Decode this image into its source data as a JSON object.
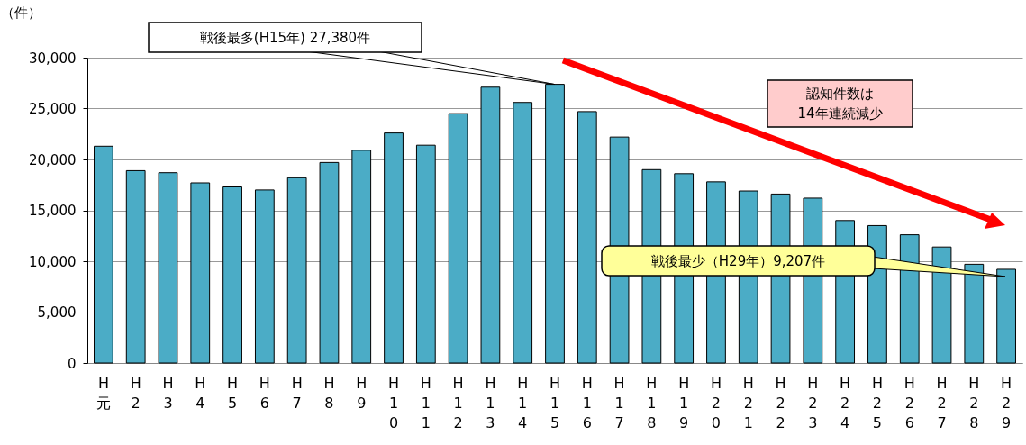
{
  "chart_data": {
    "type": "bar",
    "ylabel": "（件）",
    "categories": [
      "H元",
      "H2",
      "H3",
      "H4",
      "H5",
      "H6",
      "H7",
      "H8",
      "H9",
      "H10",
      "H11",
      "H12",
      "H13",
      "H14",
      "H15",
      "H16",
      "H17",
      "H18",
      "H19",
      "H20",
      "H21",
      "H22",
      "H23",
      "H24",
      "H25",
      "H26",
      "H27",
      "H28",
      "H29"
    ],
    "values": [
      21300,
      18900,
      18700,
      17700,
      17300,
      17000,
      18200,
      19700,
      20900,
      22600,
      21400,
      24500,
      27100,
      25600,
      27380,
      24700,
      22200,
      19000,
      18600,
      17800,
      16900,
      16600,
      16200,
      14000,
      13500,
      12600,
      11400,
      9700,
      9207
    ],
    "color": "#4bacc6",
    "ylim": [
      0,
      30000
    ],
    "yticks": [
      0,
      {
        "value": 5000,
        "label": "5,000"
      },
      {
        "value": 10000,
        "label": "10,000"
      },
      {
        "value": 15000,
        "label": "15,000"
      },
      {
        "value": 20000,
        "label": "20,000"
      },
      {
        "value": 25000,
        "label": "25,000"
      },
      {
        "value": 30000,
        "label": "30,000"
      }
    ],
    "grid": "y",
    "annotations": [
      {
        "text": "戦後最多(H15年) 27,380件",
        "x": "H15",
        "y": 27380
      },
      "戦後最少（H29年）9,207件",
      "認知件数は\n14年連続減少"
    ]
  }
}
